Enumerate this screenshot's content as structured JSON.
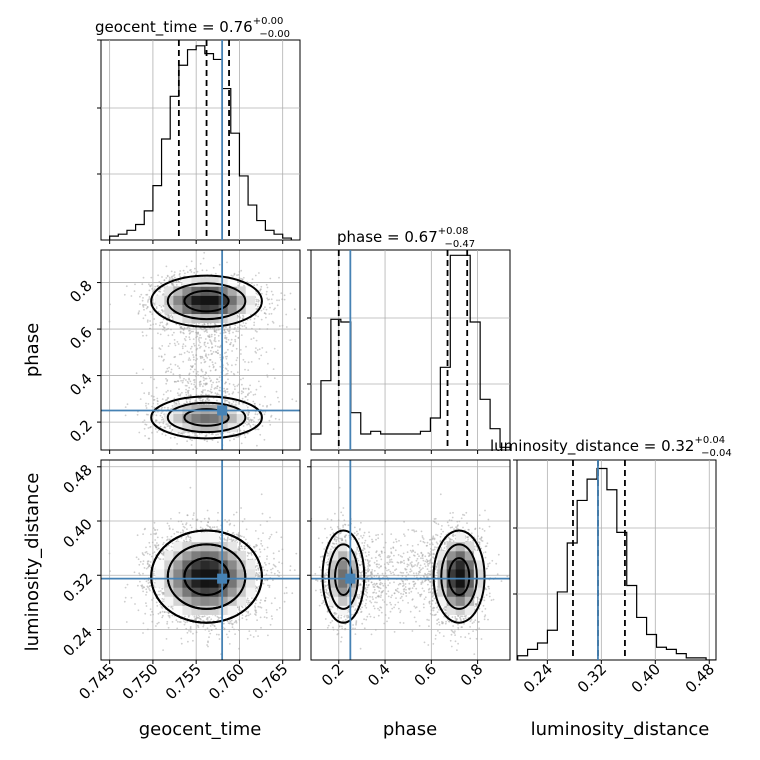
{
  "chart_data": {
    "type": "corner",
    "parameters": [
      "geocent_time",
      "phase",
      "luminosity_distance"
    ],
    "ranges": {
      "geocent_time": [
        0.744,
        0.767
      ],
      "phase": [
        0.08,
        0.94
      ],
      "luminosity_distance": [
        0.195,
        0.49
      ]
    },
    "ticks": {
      "geocent_time": [
        "0.745",
        "0.750",
        "0.755",
        "0.760",
        "0.765"
      ],
      "phase": [
        "0.2",
        "0.4",
        "0.6",
        "0.8"
      ],
      "luminosity_distance": [
        "0.24",
        "0.32",
        "0.40",
        "0.48"
      ]
    },
    "injection": {
      "geocent_time": 0.758,
      "phase": 0.25,
      "luminosity_distance": 0.315
    },
    "titles": [
      {
        "name": "geocent_time",
        "median": "0.76",
        "plus": "+0.00",
        "minus": "−0.00"
      },
      {
        "name": "phase",
        "median": "0.67",
        "plus": "+0.08",
        "minus": "−0.47"
      },
      {
        "name": "luminosity_distance",
        "median": "0.32",
        "plus": "+0.04",
        "minus": "−0.04"
      }
    ],
    "quantiles": {
      "geocent_time": [
        0.753,
        0.7562,
        0.7588
      ],
      "phase": [
        0.2,
        0.67,
        0.755
      ],
      "luminosity_distance": [
        0.278,
        0.315,
        0.355
      ]
    },
    "histograms": {
      "geocent_time": {
        "edges": [
          0.745,
          0.746,
          0.747,
          0.748,
          0.749,
          0.75,
          0.751,
          0.752,
          0.753,
          0.754,
          0.755,
          0.756,
          0.757,
          0.758,
          0.759,
          0.76,
          0.761,
          0.762,
          0.763,
          0.764,
          0.765,
          0.766
        ],
        "counts": [
          2,
          3,
          5,
          8,
          15,
          28,
          52,
          74,
          90,
          98,
          100,
          96,
          93,
          78,
          55,
          33,
          18,
          10,
          5,
          3,
          1
        ],
        "ymax": 103
      },
      "phase": {
        "edges": [
          0.08,
          0.123,
          0.166,
          0.209,
          0.252,
          0.295,
          0.338,
          0.381,
          0.424,
          0.467,
          0.51,
          0.553,
          0.596,
          0.639,
          0.682,
          0.725,
          0.768,
          0.811,
          0.854,
          0.897,
          0.94
        ],
        "counts": [
          6,
          26,
          49,
          48,
          14,
          6,
          7,
          6,
          6,
          6,
          6,
          7,
          12,
          31,
          73,
          73,
          48,
          19,
          8,
          1
        ],
        "ymax": 75
      },
      "luminosity_distance": {
        "edges": [
          0.196,
          0.2107,
          0.2254,
          0.2401,
          0.2548,
          0.2695,
          0.2842,
          0.2989,
          0.3136,
          0.3283,
          0.343,
          0.3577,
          0.3724,
          0.3871,
          0.4018,
          0.4165,
          0.4312,
          0.4459,
          0.4606,
          0.4753,
          0.49
        ],
        "counts": [
          2,
          5,
          8,
          14,
          32,
          55,
          75,
          85,
          90,
          80,
          60,
          35,
          20,
          12,
          6,
          5,
          3,
          1,
          1,
          0
        ],
        "ymax": 94
      }
    },
    "components": [
      {
        "geocent_time": 0.7562,
        "phase": 0.72,
        "luminosity_distance": 0.318,
        "sd": [
          0.0032,
          0.055,
          0.034
        ],
        "weight": 0.65
      },
      {
        "geocent_time": 0.7562,
        "phase": 0.22,
        "luminosity_distance": 0.318,
        "sd": [
          0.0032,
          0.045,
          0.034
        ],
        "weight": 0.35
      }
    ]
  }
}
